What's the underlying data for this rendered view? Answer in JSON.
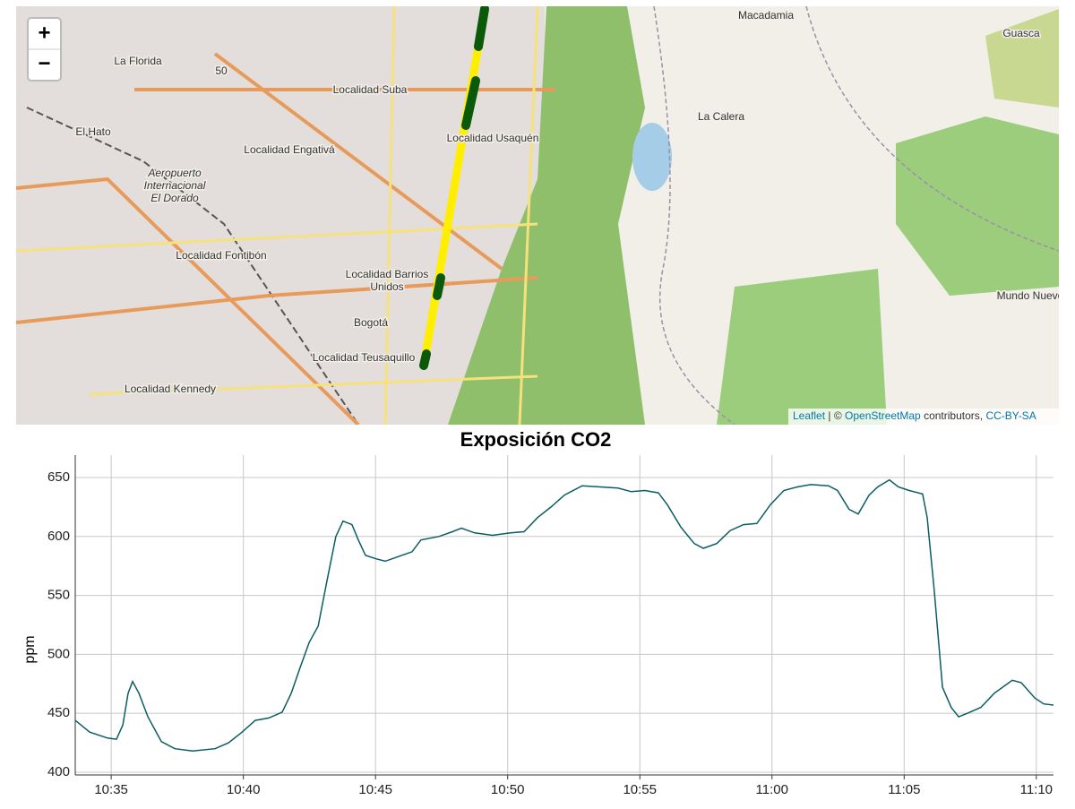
{
  "map": {
    "zoom_in": "+",
    "zoom_out": "−",
    "labels": [
      [
        "La Florida"
      ],
      [
        "50"
      ],
      [
        "Localidad Suba"
      ],
      [
        "Macadamia"
      ],
      [
        "Guasca"
      ],
      [
        "La Calera"
      ],
      [
        "El Hato"
      ],
      [
        "Localidad Engativá"
      ],
      [
        "Localidad Usaquén"
      ],
      [
        "Aeropuerto",
        "Internacional",
        "El Dorado"
      ],
      [
        "Localidad Fontibón"
      ],
      [
        "Localidad Barrios",
        "Unidos"
      ],
      [
        "Bogotá"
      ],
      [
        "Localidad Teusaquillo"
      ],
      [
        "Localidad Kennedy"
      ],
      [
        "Mundo Nuevo"
      ]
    ],
    "attribution": {
      "leaflet": "Leaflet",
      "middle": "| © ",
      "osm": "OpenStreetMap",
      "contrib": "contributors, ",
      "license": "CC-BY-SA"
    }
  },
  "chart_data": {
    "type": "line",
    "title": "Exposición CO2",
    "y_label": "ppm",
    "color": "#0b5d63",
    "grid": true,
    "x": [
      633.64,
      634.19,
      634.86,
      635.2,
      635.44,
      635.64,
      635.81,
      636.05,
      636.39,
      636.9,
      637.41,
      638.08,
      638.93,
      639.44,
      639.95,
      640.45,
      640.96,
      641.47,
      641.81,
      642.15,
      642.49,
      642.83,
      643.16,
      643.5,
      643.77,
      644.11,
      644.35,
      644.62,
      645.03,
      645.37,
      645.87,
      646.38,
      646.72,
      647.4,
      647.91,
      648.25,
      648.75,
      649.43,
      650.11,
      650.62,
      651.13,
      651.64,
      652.14,
      652.82,
      653.5,
      654.17,
      654.68,
      655.19,
      655.7,
      656.04,
      656.55,
      657.06,
      657.4,
      657.91,
      658.42,
      658.92,
      659.43,
      659.94,
      660.45,
      660.96,
      661.47,
      662.14,
      662.48,
      662.92,
      663.26,
      663.67,
      664.0,
      664.44,
      664.78,
      665.19,
      665.7,
      665.87,
      666.14,
      666.45,
      666.78,
      667.06,
      667.39,
      667.9,
      668.41,
      669.09,
      669.43,
      669.94,
      670.28,
      670.65
    ],
    "values": [
      444,
      434,
      429,
      428,
      440,
      467,
      477,
      467,
      447,
      426,
      420,
      418,
      420,
      425,
      434,
      444,
      446,
      451,
      467,
      489,
      510,
      524,
      562,
      600,
      613,
      610,
      597,
      584,
      581,
      579,
      583,
      587,
      597,
      600,
      604,
      607,
      603,
      601,
      603,
      604,
      616,
      625,
      635,
      643,
      642,
      641,
      638,
      639,
      637,
      627,
      608,
      594,
      590,
      594,
      605,
      610,
      611,
      627,
      639,
      642,
      644,
      643,
      639,
      623,
      619,
      635,
      642,
      648,
      642,
      639,
      636,
      616,
      554,
      472,
      455,
      447,
      450,
      455,
      467,
      478,
      476,
      463,
      458,
      457
    ],
    "xlim": [
      633.64,
      670.65
    ],
    "xticks": [
      {
        "value": 635,
        "label": "10:35"
      },
      {
        "value": 640,
        "label": "10:40"
      },
      {
        "value": 645,
        "label": "10:45"
      },
      {
        "value": 650,
        "label": "10:50"
      },
      {
        "value": 655,
        "label": "10:55"
      },
      {
        "value": 660,
        "label": "11:00"
      },
      {
        "value": 665,
        "label": "11:05"
      },
      {
        "value": 670,
        "label": "11:10"
      }
    ],
    "ylim": [
      397.7,
      669
    ],
    "yticks": [
      400,
      450,
      500,
      550,
      600,
      650
    ]
  }
}
